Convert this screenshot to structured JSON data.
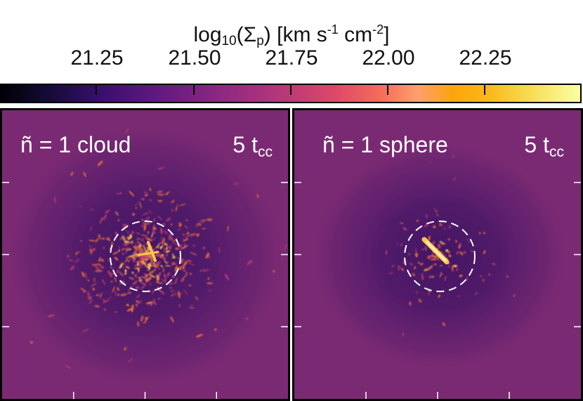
{
  "colorbar": {
    "title_prefix": "log",
    "title_base": "10",
    "title_quantity": "(Σ",
    "title_subscript": "p",
    "title_units_a": ") [km s",
    "title_exp_a": "-1",
    "title_units_b": " cm",
    "title_exp_b": "-2",
    "title_units_c": "]",
    "tick_labels": [
      "21.25",
      "21.50",
      "21.75",
      "22.00",
      "22.25"
    ],
    "tick_values": [
      21.25,
      21.5,
      21.75,
      22.0,
      22.25
    ],
    "range": [
      21.0,
      22.5
    ],
    "colormap": "inferno"
  },
  "panels": [
    {
      "label": "ñ = 1 cloud",
      "time_value": "5 t",
      "time_subscript": "cc",
      "structure": "clumpy"
    },
    {
      "label": "ñ = 1 sphere",
      "time_value": "5 t",
      "time_subscript": "cc",
      "structure": "compact"
    }
  ],
  "colors": {
    "background_field": "#7a2a72",
    "void": "#5c1e6e",
    "bright": "#fcc84a",
    "mid": "#e06a3c",
    "circle": "#ffffff"
  }
}
